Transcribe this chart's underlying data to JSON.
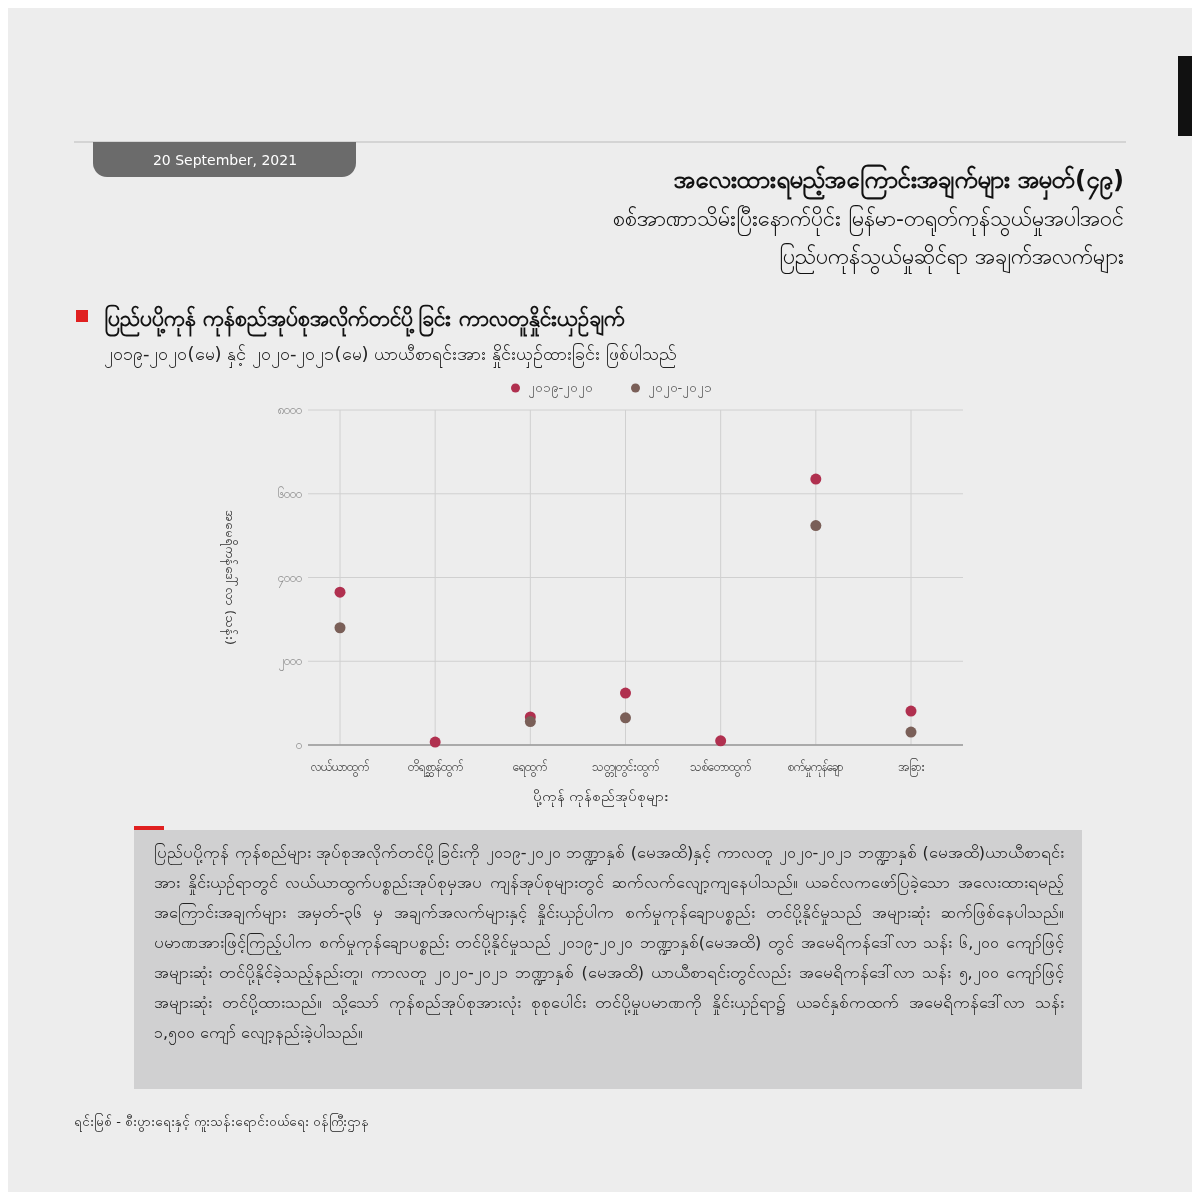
{
  "chart_data": {
    "type": "scatter",
    "title": "ပြည်ပပို့ကုန် ကုန်စည်အုပ်စုအလိုက်တင်ပို့ခြင်း ကာလတူနှိုင်းယှဉ်ချက်",
    "subtitle": "၂၀၁၉-၂၀၂၀(မေ) နှင့် ၂၀၂၀-၂၀၂၁(မေ) ယာယီစာရင်းအား နှိုင်းယှဉ်ထားခြင်း ဖြစ်ပါသည်",
    "xlabel": "ပို့ကုန် ကုန်စည်အုပ်စုများ",
    "ylabel": "အမေရိကန်ဒေါ်လာ (သန်း)",
    "categories": [
      "လယ်ယာထွက်",
      "တိရစ္ဆာန်ထွက်",
      "ရေထွက်",
      "သတ္တုတွင်းထွက်",
      "သစ်တောထွက်",
      "စက်မှုကုန်ချော",
      "အခြား"
    ],
    "series": [
      {
        "name": "၂၀၁၉-၂၀၂၀",
        "color": "#b0304f",
        "values": [
          3650,
          70,
          670,
          1240,
          100,
          6350,
          810
        ]
      },
      {
        "name": "၂၀၂၀-၂၀၂၁",
        "color": "#7a5f58",
        "values": [
          2800,
          null,
          560,
          650,
          null,
          5240,
          310
        ]
      }
    ],
    "ylim": [
      0,
      8000
    ],
    "yticks": [
      {
        "value": 0,
        "label": "၀"
      },
      {
        "value": 2000,
        "label": "၂၀၀၀"
      },
      {
        "value": 4000,
        "label": "၄၀၀၀"
      },
      {
        "value": 6000,
        "label": "၆၀၀၀"
      },
      {
        "value": 8000,
        "label": "၈၀၀၀"
      }
    ],
    "grid": true,
    "legend": "top",
    "marker": "circle",
    "annotations": [
      "အလေးထားရမည့်အကြောင်းအချက်များ အမှတ်(၄၉)",
      "စစ်အာဏာသိမ်းပြီးနောက်ပိုင်း မြန်မာ-တရုတ်ကုန်သွယ်မှုအပါအဝင်",
      "ပြည်ပကုန်သွယ်မှုဆိုင်ရာ အချက်အလက်များ",
      "20 September, 2021",
      "ပြည်ပပို့ကုန် ကုန်စည်များ အုပ်စုအလိုက်တင်ပို့ခြင်းကို ၂၀၁၉-၂၀၂၀ ဘဏ္ဍာနှစ် (မေအထိ)နှင့် ကာလတူ ၂၀၂၀-၂၀၂၁ ဘဏ္ဍာနှစ် (မေအထိ)ယာယီစာရင်းအား နှိုင်းယှဉ်ရာတွင် လယ်ယာထွက်ပစ္စည်းအုပ်စုမှအပ ကျန်အုပ်စုများတွင် ဆက်လက်လျော့ကျနေပါသည်။ ယခင်လကဖော်ပြခဲ့သော အလေးထားရမည့် အကြောင်းအချက်များ အမှတ်-၃၆ မှ အချက်အလက်များနှင့် နှိုင်းယှဉ်ပါက စက်မှုကုန်ချောပစ္စည်း တင်ပို့နိုင်မှုသည် အများဆုံး ဆက်ဖြစ်နေပါသည်။ ပမာဏအားဖြင့်ကြည့်ပါက စက်မှုကုန်ချောပစ္စည်း တင်ပို့နိုင်မှုသည် ၂၀၁၉-၂၀၂၀ ဘဏ္ဍာနှစ်(မေအထိ) တွင် အမေရိကန်ဒေါ်လာ သန်း ၆,၂၀၀ ကျော်ဖြင့် အများဆုံး တင်ပို့နိုင်ခဲ့သည့်နည်းတူ၊ ကာလတူ ၂၀၂၀-၂၀၂၁ ဘဏ္ဍာနှစ် (မေအထိ) ယာယီစာရင်းတွင်လည်း အမေရိကန်ဒေါ်လာ သန်း ၅,၂၀၀ ကျော်ဖြင့် အများဆုံး တင်ပို့ထားသည်။ သို့သော် ကုန်စည်အုပ်စုအားလုံး စုစုပေါင်း တင်ပို့မှုပမာဏကို နှိုင်းယှဉ်ရာ၌ ယခင်နှစ်ကထက် အမေရိကန်ဒေါ်လာ သန်း ၁,၅၀၀ ကျော် လျော့နည်းခဲ့ပါသည်။",
      "ရင်းမြစ် - စီးပွားရေးနှင့် ကူးသန်းရောင်းဝယ်ရေး ဝန်ကြီးဌာန"
    ]
  }
}
